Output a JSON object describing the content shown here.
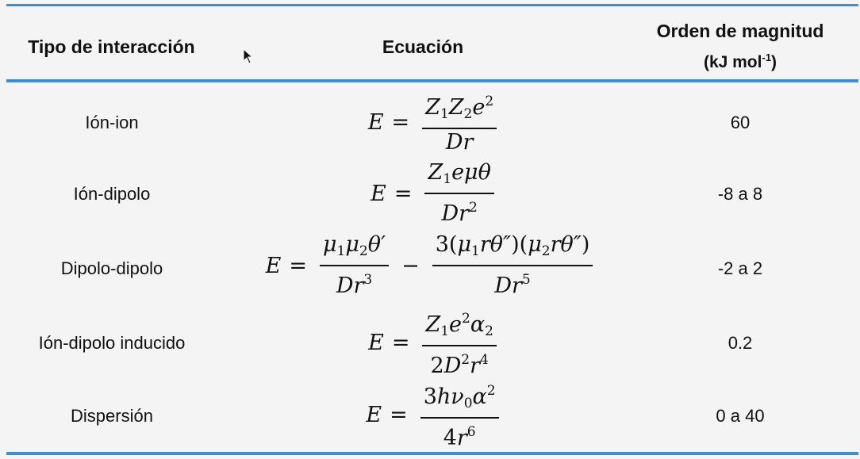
{
  "header": {
    "col_interaction": "Tipo de interacción",
    "col_equation": "Ecuación",
    "col_magnitude_line1": "Orden de magnitud",
    "col_magnitude_unit_prefix": "(kJ mol",
    "col_magnitude_unit_exp": "-1",
    "col_magnitude_unit_suffix": ")"
  },
  "rows": [
    {
      "interaction": "Ión-ion",
      "magnitude": "60"
    },
    {
      "interaction": "Ión-dipolo",
      "magnitude": "-8 a 8"
    },
    {
      "interaction": "Dipolo-dipolo",
      "magnitude": "-2 a 2"
    },
    {
      "interaction": "Ión-dipolo inducido",
      "magnitude": "0.2"
    },
    {
      "interaction": "Dispersión",
      "magnitude": "0 a 40"
    }
  ],
  "colors": {
    "rule": "#3a8fd8",
    "background": "#f4f4f4",
    "text": "#111111"
  }
}
